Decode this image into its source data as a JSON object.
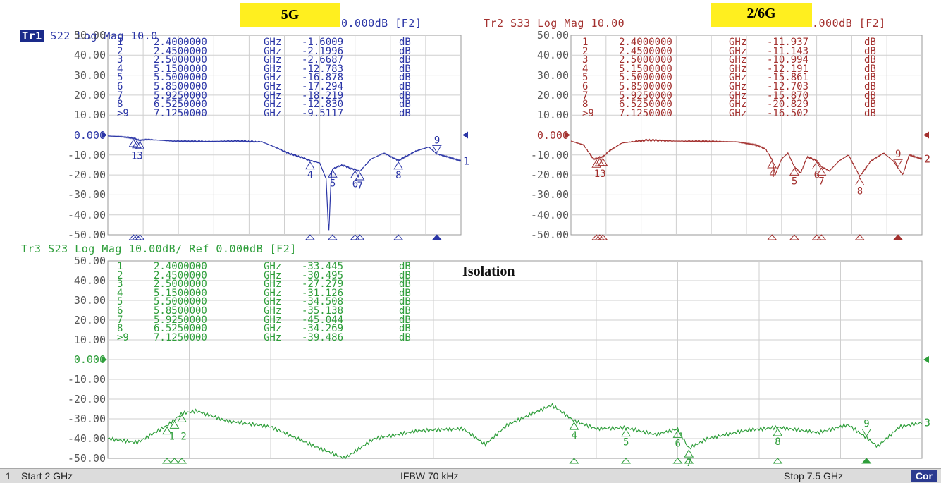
{
  "yticks": [
    "50.00",
    "40.00",
    "30.00",
    "20.00",
    "10.00",
    "0.000",
    "-10.00",
    "-20.00",
    "-30.00",
    "-40.00",
    "-50.00"
  ],
  "tr1": {
    "badge": "Tr1",
    "header_rest": " S22 Log Mag 10.0",
    "header_tail": "0.000dB [F2]",
    "color": "#2a35a6",
    "end_label": "1",
    "markers": [
      {
        "n": "1",
        "freq": "2.4000000",
        "unit": "GHz",
        "val": "-1.6009",
        "db": "dB"
      },
      {
        "n": "2",
        "freq": "2.4500000",
        "unit": "GHz",
        "val": "-2.1996",
        "db": "dB"
      },
      {
        "n": "3",
        "freq": "2.5000000",
        "unit": "GHz",
        "val": "-2.6687",
        "db": "dB"
      },
      {
        "n": "4",
        "freq": "5.1500000",
        "unit": "GHz",
        "val": "-12.783",
        "db": "dB"
      },
      {
        "n": "5",
        "freq": "5.5000000",
        "unit": "GHz",
        "val": "-16.878",
        "db": "dB"
      },
      {
        "n": "6",
        "freq": "5.8500000",
        "unit": "GHz",
        "val": "-17.294",
        "db": "dB"
      },
      {
        "n": "7",
        "freq": "5.9250000",
        "unit": "GHz",
        "val": "-18.219",
        "db": "dB"
      },
      {
        "n": "8",
        "freq": "6.5250000",
        "unit": "GHz",
        "val": "-12.830",
        "db": "dB"
      },
      {
        "n": ">9",
        "freq": "7.1250000",
        "unit": "GHz",
        "val": "-9.5117",
        "db": "dB"
      }
    ]
  },
  "tr2": {
    "header_a": "Tr2 S33 Log Mag 10.00",
    "header_tail": ".000dB [F2]",
    "color": "#a3302e",
    "end_label": "2",
    "markers": [
      {
        "n": "1",
        "freq": "2.4000000",
        "unit": "GHz",
        "val": "-11.937",
        "db": "dB"
      },
      {
        "n": "2",
        "freq": "2.4500000",
        "unit": "GHz",
        "val": "-11.143",
        "db": "dB"
      },
      {
        "n": "3",
        "freq": "2.5000000",
        "unit": "GHz",
        "val": "-10.994",
        "db": "dB"
      },
      {
        "n": "4",
        "freq": "5.1500000",
        "unit": "GHz",
        "val": "-12.191",
        "db": "dB"
      },
      {
        "n": "5",
        "freq": "5.5000000",
        "unit": "GHz",
        "val": "-15.861",
        "db": "dB"
      },
      {
        "n": "6",
        "freq": "5.8500000",
        "unit": "GHz",
        "val": "-12.703",
        "db": "dB"
      },
      {
        "n": "7",
        "freq": "5.9250000",
        "unit": "GHz",
        "val": "-15.870",
        "db": "dB"
      },
      {
        "n": "8",
        "freq": "6.5250000",
        "unit": "GHz",
        "val": "-20.829",
        "db": "dB"
      },
      {
        "n": ">9",
        "freq": "7.1250000",
        "unit": "GHz",
        "val": "-16.502",
        "db": "dB"
      }
    ]
  },
  "tr3": {
    "header": "Tr3 S23 Log Mag 10.00dB/ Ref 0.000dB [F2]",
    "color": "#2e9e3a",
    "end_label": "3",
    "markers": [
      {
        "n": "1",
        "freq": "2.4000000",
        "unit": "GHz",
        "val": "-33.445",
        "db": "dB"
      },
      {
        "n": "2",
        "freq": "2.4500000",
        "unit": "GHz",
        "val": "-30.495",
        "db": "dB"
      },
      {
        "n": "3",
        "freq": "2.5000000",
        "unit": "GHz",
        "val": "-27.279",
        "db": "dB"
      },
      {
        "n": "4",
        "freq": "5.1500000",
        "unit": "GHz",
        "val": "-31.126",
        "db": "dB"
      },
      {
        "n": "5",
        "freq": "5.5000000",
        "unit": "GHz",
        "val": "-34.508",
        "db": "dB"
      },
      {
        "n": "6",
        "freq": "5.8500000",
        "unit": "GHz",
        "val": "-35.138",
        "db": "dB"
      },
      {
        "n": "7",
        "freq": "5.9250000",
        "unit": "GHz",
        "val": "-45.044",
        "db": "dB"
      },
      {
        "n": "8",
        "freq": "6.5250000",
        "unit": "GHz",
        "val": "-34.269",
        "db": "dB"
      },
      {
        "n": ">9",
        "freq": "7.1250000",
        "unit": "GHz",
        "val": "-39.486",
        "db": "dB"
      }
    ]
  },
  "labels": {
    "band_5g": "5G",
    "band_26g": "2/6G",
    "isolation": "Isolation"
  },
  "status": {
    "channel": "1",
    "start": "Start 2 GHz",
    "ifbw": "IFBW 70 kHz",
    "stop": "Stop 7.5 GHz",
    "cor": "Cor"
  }
}
